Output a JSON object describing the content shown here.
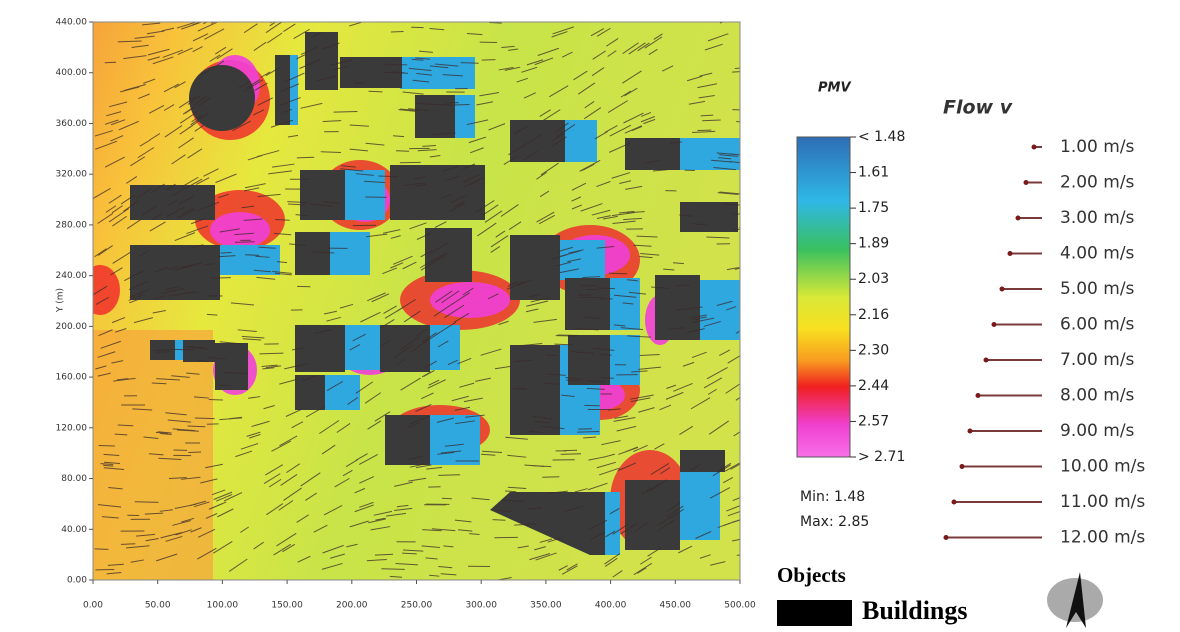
{
  "plot": {
    "ylabel": "Y (m)",
    "xlim": [
      0,
      500
    ],
    "ylim": [
      0,
      440
    ],
    "xticks": [
      {
        "value": 0,
        "label": "0.00"
      },
      {
        "value": 50,
        "label": "50.00"
      },
      {
        "value": 100,
        "label": "100.00"
      },
      {
        "value": 150,
        "label": "150.00"
      },
      {
        "value": 200,
        "label": "200.00"
      },
      {
        "value": 250,
        "label": "250.00"
      },
      {
        "value": 300,
        "label": "300.00"
      },
      {
        "value": 350,
        "label": "350.00"
      },
      {
        "value": 400,
        "label": "400.00"
      },
      {
        "value": 450,
        "label": "450.00"
      },
      {
        "value": 500,
        "label": "500.00"
      }
    ],
    "yticks": [
      {
        "value": 0,
        "label": "0.00"
      },
      {
        "value": 40,
        "label": "40.00"
      },
      {
        "value": 80,
        "label": "80.00"
      },
      {
        "value": 120,
        "label": "120.00"
      },
      {
        "value": 160,
        "label": "160.00"
      },
      {
        "value": 200,
        "label": "200.00"
      },
      {
        "value": 240,
        "label": "240.00"
      },
      {
        "value": 280,
        "label": "280.00"
      },
      {
        "value": 320,
        "label": "320.00"
      },
      {
        "value": 360,
        "label": "360.00"
      },
      {
        "value": 400,
        "label": "400.00"
      },
      {
        "value": 440,
        "label": "440.00"
      }
    ]
  },
  "pmv_legend": {
    "title": "PMV",
    "labels": [
      "< 1.48",
      "1.61",
      "1.75",
      "1.89",
      "2.03",
      "2.16",
      "2.30",
      "2.44",
      "2.57",
      "> 2.71"
    ],
    "min": "Min: 1.48",
    "max": "Max: 2.85"
  },
  "flow_legend": {
    "title": "Flow v",
    "entries": [
      {
        "value": 1,
        "label": "1.00 m/s"
      },
      {
        "value": 2,
        "label": "2.00 m/s"
      },
      {
        "value": 3,
        "label": "3.00 m/s"
      },
      {
        "value": 4,
        "label": "4.00 m/s"
      },
      {
        "value": 5,
        "label": "5.00 m/s"
      },
      {
        "value": 6,
        "label": "6.00 m/s"
      },
      {
        "value": 7,
        "label": "7.00 m/s"
      },
      {
        "value": 8,
        "label": "8.00 m/s"
      },
      {
        "value": 9,
        "label": "9.00 m/s"
      },
      {
        "value": 10,
        "label": "10.00 m/s"
      },
      {
        "value": 11,
        "label": "11.00 m/s"
      },
      {
        "value": 12,
        "label": "12.00 m/s"
      }
    ]
  },
  "objects_legend": {
    "title": "Objects",
    "buildings": "Buildings"
  }
}
